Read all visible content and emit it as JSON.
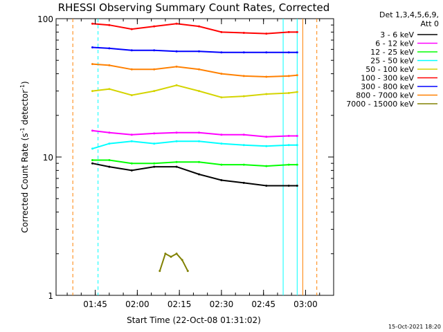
{
  "chart_data": {
    "type": "line",
    "title": "RHESSI Observing Summary Count Rates, Corrected",
    "xlabel": "Start Time (22-Oct-08 01:31:02)",
    "ylabel": "Corrected Count Rate (s",
    "ylabel_sup1": "-1",
    "ylabel_mid": " detector",
    "ylabel_sup2": "-1",
    "ylabel_end": ")",
    "y_scale": "log",
    "ylim": [
      1,
      100
    ],
    "xlim": [
      "01:31:02",
      "03:10:00"
    ],
    "x_tick_labels": [
      "01:45",
      "02:00",
      "02:15",
      "02:30",
      "02:45",
      "03:00"
    ],
    "x_tick_values": [
      "01:45",
      "02:00",
      "02:15",
      "02:30",
      "02:45",
      "03:00"
    ],
    "y_tick_labels": [
      "1",
      "10",
      "100"
    ],
    "legend_header": [
      "Det 1,3,4,5,6,9,",
      "Att 0"
    ],
    "legend_position": "right",
    "series": [
      {
        "name": "3 - 6 keV",
        "color": "#000000",
        "x": [
          "01:44",
          "01:50",
          "01:58",
          "02:06",
          "02:14",
          "02:22",
          "02:30",
          "02:38",
          "02:46",
          "02:54",
          "02:57"
        ],
        "values": [
          9.0,
          8.5,
          8.0,
          8.5,
          8.5,
          7.5,
          6.8,
          6.5,
          6.2,
          6.2,
          6.2
        ]
      },
      {
        "name": "6 - 12 keV",
        "color": "#ff00ff",
        "x": [
          "01:44",
          "01:50",
          "01:58",
          "02:06",
          "02:14",
          "02:22",
          "02:30",
          "02:38",
          "02:46",
          "02:54",
          "02:57"
        ],
        "values": [
          15.5,
          15.0,
          14.5,
          14.8,
          15.0,
          15.0,
          14.5,
          14.5,
          14.0,
          14.2,
          14.2
        ]
      },
      {
        "name": "12 - 25 keV",
        "color": "#00ff00",
        "x": [
          "01:44",
          "01:50",
          "01:58",
          "02:06",
          "02:14",
          "02:22",
          "02:30",
          "02:38",
          "02:46",
          "02:54",
          "02:57"
        ],
        "values": [
          9.5,
          9.5,
          9.0,
          9.0,
          9.2,
          9.2,
          8.8,
          8.8,
          8.6,
          8.8,
          8.8
        ]
      },
      {
        "name": "25 - 50 keV",
        "color": "#00ffff",
        "x": [
          "01:44",
          "01:50",
          "01:58",
          "02:06",
          "02:14",
          "02:22",
          "02:30",
          "02:38",
          "02:46",
          "02:54",
          "02:57"
        ],
        "values": [
          11.5,
          12.5,
          13.0,
          12.5,
          13.0,
          13.0,
          12.5,
          12.2,
          12.0,
          12.2,
          12.2
        ]
      },
      {
        "name": "50 - 100 keV",
        "color": "#d4d400",
        "x": [
          "01:44",
          "01:50",
          "01:58",
          "02:06",
          "02:14",
          "02:22",
          "02:30",
          "02:38",
          "02:46",
          "02:54",
          "02:57"
        ],
        "values": [
          30,
          31,
          28,
          30,
          33,
          30,
          27,
          27.5,
          28.5,
          29,
          29.5
        ]
      },
      {
        "name": "100 - 300 keV",
        "color": "#ff0000",
        "x": [
          "01:44",
          "01:50",
          "01:58",
          "02:06",
          "02:14",
          "02:22",
          "02:30",
          "02:38",
          "02:46",
          "02:54",
          "02:57"
        ],
        "values": [
          92,
          90,
          84,
          88,
          92,
          88,
          80,
          79,
          78,
          80,
          80
        ]
      },
      {
        "name": "300 - 800 keV",
        "color": "#0000ff",
        "x": [
          "01:44",
          "01:50",
          "01:58",
          "02:06",
          "02:14",
          "02:22",
          "02:30",
          "02:38",
          "02:46",
          "02:54",
          "02:57"
        ],
        "values": [
          62,
          61,
          59,
          59,
          58,
          58,
          57,
          57,
          57,
          57,
          57
        ]
      },
      {
        "name": "800 - 7000 keV",
        "color": "#ff8000",
        "x": [
          "01:44",
          "01:50",
          "01:58",
          "02:06",
          "02:14",
          "02:22",
          "02:30",
          "02:38",
          "02:46",
          "02:54",
          "02:57"
        ],
        "values": [
          47,
          46,
          43,
          43,
          45,
          43,
          40,
          38.5,
          38,
          38.5,
          39
        ]
      },
      {
        "name": "7000 - 15000 keV",
        "color": "#808000",
        "x": [
          "02:08",
          "02:10",
          "02:12",
          "02:14",
          "02:16",
          "02:18"
        ],
        "values": [
          1.5,
          2.0,
          1.9,
          2.0,
          1.8,
          1.5
        ]
      }
    ],
    "attenuator_lines": {
      "color": "#ff8000",
      "x": [
        "01:37",
        "02:59",
        "03:04"
      ]
    },
    "saa_lines": {
      "color": "#00ffff",
      "x": [
        "01:46",
        "02:52",
        "02:57"
      ]
    },
    "timestamp": "15-Oct-2021 18:20"
  }
}
